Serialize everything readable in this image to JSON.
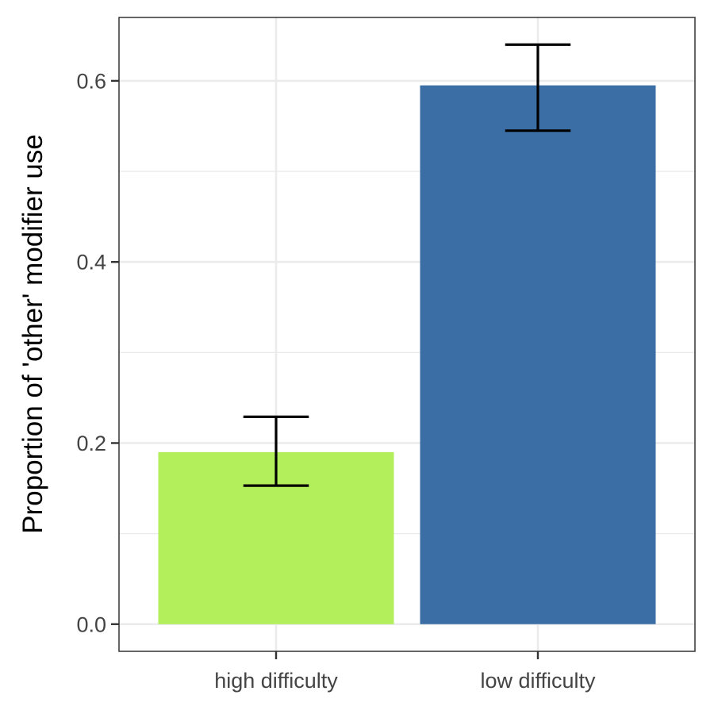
{
  "chart_data": {
    "type": "bar",
    "title": "",
    "xlabel": "",
    "ylabel": "Proportion of 'other' modifier use",
    "categories": [
      "high difficulty",
      "low difficulty"
    ],
    "values": [
      0.19,
      0.595
    ],
    "error_bars": [
      {
        "lower": 0.153,
        "upper": 0.229
      },
      {
        "lower": 0.545,
        "upper": 0.64
      }
    ],
    "bar_colors": [
      "#b2ef5a",
      "#3a6ea5"
    ],
    "ylim": [
      -0.03,
      0.67
    ],
    "y_ticks": [
      {
        "value": 0.0,
        "label": "0.0"
      },
      {
        "value": 0.2,
        "label": "0.2"
      },
      {
        "value": 0.4,
        "label": "0.4"
      },
      {
        "value": 0.6,
        "label": "0.6"
      }
    ],
    "y_minor_ticks": [
      0.1,
      0.3,
      0.5
    ],
    "grid": true,
    "legend": "none"
  }
}
